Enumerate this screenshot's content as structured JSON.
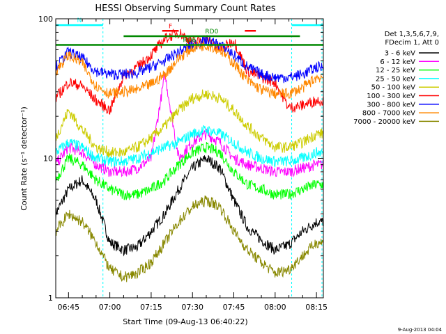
{
  "chart_data": {
    "type": "line",
    "title": "HESSI Observing Summary Count Rates",
    "xlabel": "Start Time (09-Aug-13 06:40:22)",
    "ylabel": "Count Rate (s⁻¹ detector⁻¹)",
    "yscale": "log",
    "ylim": [
      1,
      100
    ],
    "xlim": [
      "06:40:22",
      "08:17:30"
    ],
    "x_ticks": [
      "06:45",
      "07:00",
      "07:15",
      "07:30",
      "07:45",
      "08:00",
      "08:15"
    ],
    "y_ticks": [
      1,
      10,
      100
    ],
    "grid": false,
    "legend": {
      "position": "right",
      "header": [
        "Det 1,3,5,6,7,9,",
        "FDecim 1, Att 0"
      ],
      "entries": [
        {
          "label": "3 - 6 keV",
          "color": "#000000"
        },
        {
          "label": "6 - 12 keV",
          "color": "#ff00ff"
        },
        {
          "label": "12 - 25 keV",
          "color": "#00ff00"
        },
        {
          "label": "25 - 50 keV",
          "color": "#00ffff"
        },
        {
          "label": "50 - 100 keV",
          "color": "#cccc00"
        },
        {
          "label": "100 - 300 keV",
          "color": "#ff0000"
        },
        {
          "label": "300 - 800 keV",
          "color": "#0000ff"
        },
        {
          "label": "800 - 7000 keV",
          "color": "#ff8800"
        },
        {
          "label": "7000 - 20000 keV",
          "color": "#888800"
        }
      ]
    },
    "series": [
      {
        "name": "3 - 6 keV",
        "color": "#000000",
        "x": [
          "06:40",
          "06:45",
          "06:50",
          "06:55",
          "07:00",
          "07:05",
          "07:10",
          "07:15",
          "07:20",
          "07:25",
          "07:30",
          "07:35",
          "07:40",
          "07:45",
          "07:50",
          "07:55",
          "08:00",
          "08:05",
          "08:10",
          "08:15"
        ],
        "values": [
          4,
          6,
          7,
          5,
          2.5,
          2.2,
          2.3,
          3,
          4,
          6,
          8.5,
          10,
          8.5,
          5,
          3.2,
          2.6,
          2.2,
          2.4,
          3,
          3.5
        ]
      },
      {
        "name": "6 - 12 keV",
        "color": "#ff00ff",
        "x": [
          "06:40",
          "06:45",
          "06:50",
          "06:55",
          "07:00",
          "07:05",
          "07:10",
          "07:15",
          "07:20",
          "07:25",
          "07:30",
          "07:35",
          "07:40",
          "07:45",
          "07:50",
          "07:55",
          "08:00",
          "08:05",
          "08:10",
          "08:15"
        ],
        "values": [
          9,
          12,
          11,
          9,
          8,
          8,
          8.5,
          10,
          40,
          10,
          13,
          15,
          13,
          10,
          9,
          8.5,
          8,
          8,
          8.5,
          9
        ]
      },
      {
        "name": "12 - 25 keV",
        "color": "#00ff00",
        "x": [
          "06:40",
          "06:45",
          "06:50",
          "06:55",
          "07:00",
          "07:05",
          "07:10",
          "07:15",
          "07:20",
          "07:25",
          "07:30",
          "07:35",
          "07:40",
          "07:45",
          "07:50",
          "07:55",
          "08:00",
          "08:05",
          "08:10",
          "08:15"
        ],
        "values": [
          7,
          10,
          9,
          7,
          6,
          5.5,
          5.5,
          6,
          7,
          9,
          11,
          12,
          11,
          8,
          6.5,
          6,
          5.5,
          5.5,
          6,
          6.5
        ]
      },
      {
        "name": "25 - 50 keV",
        "color": "#00ffff",
        "x": [
          "06:40",
          "06:45",
          "06:50",
          "06:55",
          "07:00",
          "07:05",
          "07:10",
          "07:15",
          "07:20",
          "07:25",
          "07:30",
          "07:35",
          "07:40",
          "07:45",
          "07:50",
          "07:55",
          "08:00",
          "08:05",
          "08:10",
          "08:15"
        ],
        "values": [
          11,
          13,
          12,
          10,
          9.5,
          9.5,
          10,
          11,
          12,
          13,
          15,
          16,
          15,
          13,
          11,
          10,
          9.5,
          9.5,
          10,
          11
        ]
      },
      {
        "name": "50 - 100 keV",
        "color": "#cccc00",
        "x": [
          "06:40",
          "06:45",
          "06:50",
          "06:55",
          "07:00",
          "07:05",
          "07:10",
          "07:15",
          "07:20",
          "07:25",
          "07:30",
          "07:35",
          "07:40",
          "07:45",
          "07:50",
          "07:55",
          "08:00",
          "08:05",
          "08:10",
          "08:15"
        ],
        "values": [
          14,
          22,
          16,
          12,
          11,
          11,
          12,
          14,
          17,
          22,
          27,
          29,
          27,
          22,
          17,
          14,
          12,
          12,
          13,
          15
        ]
      },
      {
        "name": "100 - 300 keV",
        "color": "#ff0000",
        "x": [
          "06:40",
          "06:45",
          "06:50",
          "06:55",
          "07:00",
          "07:05",
          "07:10",
          "07:15",
          "07:20",
          "07:25",
          "07:30",
          "07:35",
          "07:40",
          "07:45",
          "07:50",
          "07:55",
          "08:00",
          "08:05",
          "08:10",
          "08:15"
        ],
        "values": [
          27,
          35,
          33,
          26,
          22,
          39,
          45,
          55,
          72,
          80,
          68,
          72,
          60,
          70,
          42,
          38,
          35,
          23,
          24,
          26
        ]
      },
      {
        "name": "300 - 800 keV",
        "color": "#0000ff",
        "x": [
          "06:40",
          "06:45",
          "06:50",
          "06:55",
          "07:00",
          "07:05",
          "07:10",
          "07:15",
          "07:20",
          "07:25",
          "07:30",
          "07:35",
          "07:40",
          "07:45",
          "07:50",
          "07:55",
          "08:00",
          "08:05",
          "08:10",
          "08:15"
        ],
        "values": [
          45,
          58,
          52,
          42,
          40,
          40,
          41,
          45,
          50,
          58,
          65,
          70,
          65,
          55,
          45,
          40,
          38,
          38,
          40,
          45
        ]
      },
      {
        "name": "800 - 7000 keV",
        "color": "#ff8800",
        "x": [
          "06:40",
          "06:45",
          "06:50",
          "06:55",
          "07:00",
          "07:05",
          "07:10",
          "07:15",
          "07:20",
          "07:25",
          "07:30",
          "07:35",
          "07:40",
          "07:45",
          "07:50",
          "07:55",
          "08:00",
          "08:05",
          "08:10",
          "08:15"
        ],
        "values": [
          42,
          55,
          48,
          33,
          29,
          30,
          31,
          34,
          40,
          52,
          62,
          65,
          60,
          48,
          36,
          31,
          29,
          29,
          32,
          38
        ]
      },
      {
        "name": "7000 - 20000 keV",
        "color": "#888800",
        "x": [
          "06:40",
          "06:45",
          "06:50",
          "06:55",
          "07:00",
          "07:05",
          "07:10",
          "07:15",
          "07:20",
          "07:25",
          "07:30",
          "07:35",
          "07:40",
          "07:45",
          "07:50",
          "07:55",
          "08:00",
          "08:05",
          "08:10",
          "08:15"
        ],
        "values": [
          3,
          4,
          3.5,
          2.5,
          1.6,
          1.4,
          1.5,
          1.8,
          2.5,
          3.5,
          4.5,
          5,
          4.5,
          3,
          2.2,
          1.8,
          1.5,
          1.6,
          2,
          2.5
        ]
      }
    ],
    "flags": [
      {
        "label": "N",
        "color": "#00ffff",
        "value": 90,
        "segments": [
          [
            "06:40:22",
            "06:57:30"
          ],
          [
            "08:06:00",
            "08:17:30"
          ]
        ]
      },
      {
        "label": "RD0",
        "color": "#008800",
        "value": 75,
        "segments": [
          [
            "07:05:00",
            "08:09:00"
          ]
        ]
      },
      {
        "label": "RD6",
        "color": "#008800",
        "value": 65,
        "segments": [
          [
            "06:40:22",
            "08:17:30"
          ]
        ]
      },
      {
        "label": "F",
        "color": "#ff0000",
        "value": 82,
        "segments": [
          [
            "07:19:00",
            "07:25:00"
          ],
          [
            "07:49:00",
            "07:53:00"
          ]
        ]
      }
    ],
    "markers": [
      "06:40:22",
      "06:57:30",
      "08:06:00",
      "08:17:00"
    ]
  },
  "footer": {
    "timestamp": "9-Aug-2013 04:04"
  }
}
